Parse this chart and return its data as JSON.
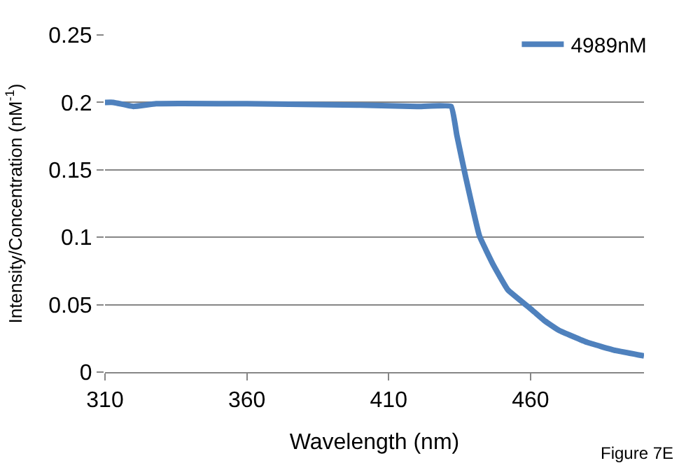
{
  "chart_data": {
    "type": "line",
    "xlabel": "Wavelength (nm)",
    "ylabel": "Intensity/Concentration (nM$^{-1}$)",
    "annotations": [
      "Figure 7E"
    ],
    "series": [
      {
        "name": "4989nM",
        "color": "#4f81bd",
        "x": [
          310,
          313,
          320,
          328,
          360,
          400,
          420,
          432,
          434,
          437,
          442,
          447,
          452,
          460,
          465,
          470,
          480,
          490,
          500
        ],
        "values": [
          0.2,
          0.2,
          0.197,
          0.199,
          0.199,
          0.198,
          0.197,
          0.197,
          0.176,
          0.146,
          0.101,
          0.079,
          0.061,
          0.047,
          0.038,
          0.031,
          0.022,
          0.016,
          0.012
        ]
      }
    ],
    "xlim": [
      310,
      500
    ],
    "xticks": [
      310,
      360,
      410,
      460
    ],
    "ylim": [
      0,
      0.25
    ],
    "yticks": [
      0,
      0.05,
      0.1,
      0.15,
      0.2,
      0.25
    ],
    "grid": "y",
    "legend": "top right",
    "marker": "none",
    "line_style": "solid"
  }
}
